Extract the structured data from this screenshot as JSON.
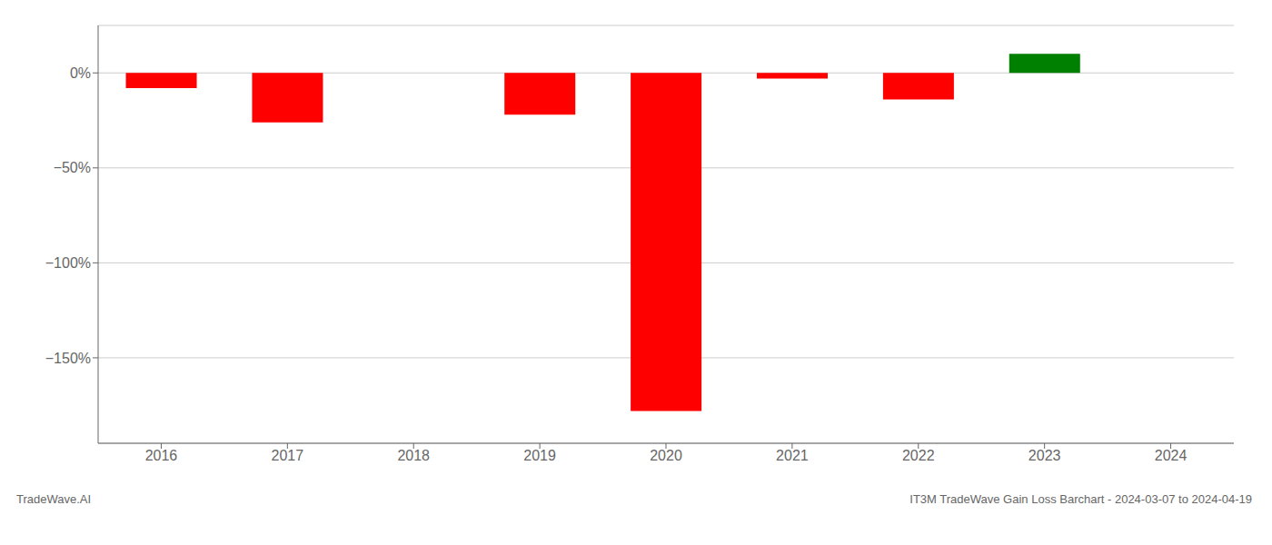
{
  "chart_data": {
    "type": "bar",
    "title": "IT3M TradeWave Gain Loss Barchart - 2024-03-07 to 2024-04-19",
    "annotations": [
      "TradeWave.AI"
    ],
    "categories": [
      "2016",
      "2017",
      "2018",
      "2019",
      "2020",
      "2021",
      "2022",
      "2023",
      "2024"
    ],
    "values": [
      -8,
      -26,
      0,
      -22,
      -178,
      -3,
      -14,
      10,
      0
    ],
    "colors": [
      "#ff0000",
      "#ff0000",
      "#ff0000",
      "#ff0000",
      "#ff0000",
      "#ff0000",
      "#ff0000",
      "#008000",
      "#ff0000"
    ],
    "ylim": [
      -195,
      25
    ],
    "yticks": [
      {
        "value": 0,
        "label": "0%"
      },
      {
        "value": -50,
        "label": "−50%"
      },
      {
        "value": -100,
        "label": "−100%"
      },
      {
        "value": -150,
        "label": "−150%"
      }
    ],
    "grid": true
  }
}
